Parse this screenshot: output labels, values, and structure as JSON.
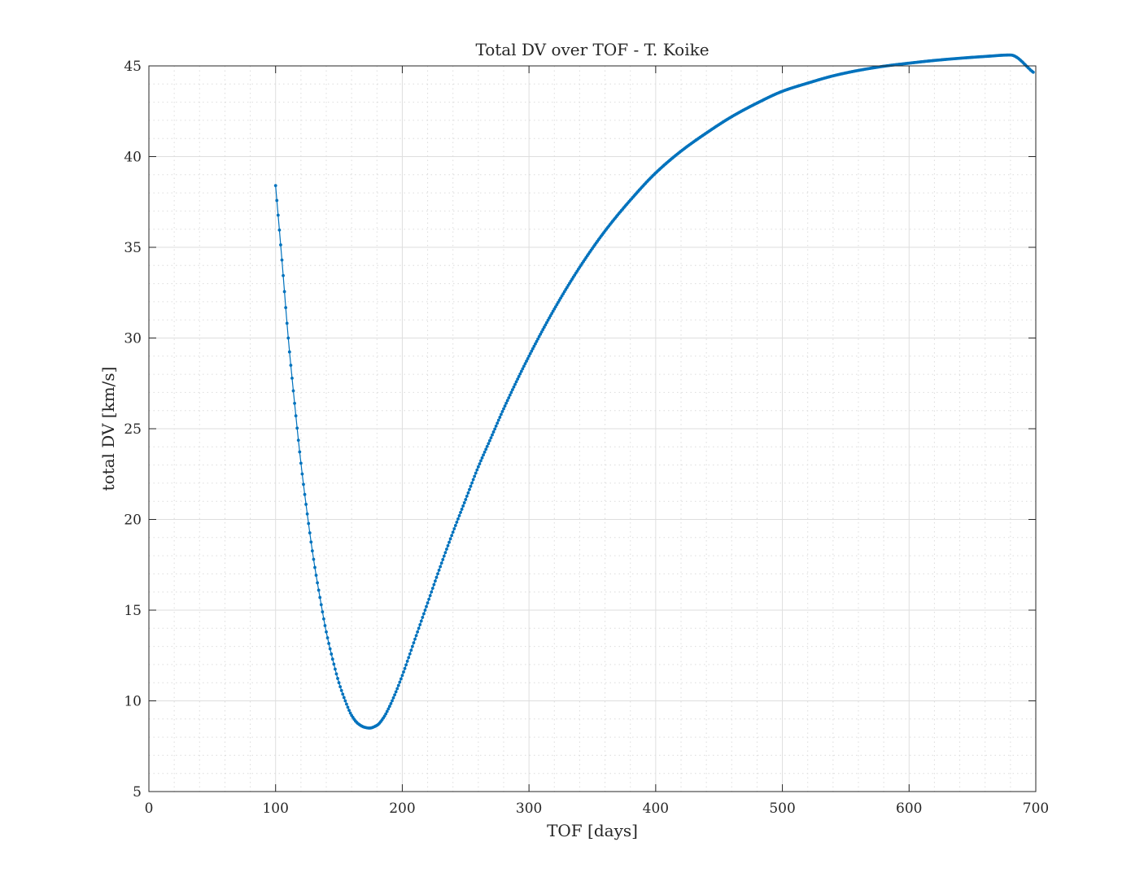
{
  "chart_data": {
    "type": "line",
    "title": "Total DV over TOF - T. Koike",
    "xlabel": "TOF [days]",
    "ylabel": "total DV [km/s]",
    "xlim": [
      0,
      700
    ],
    "ylim": [
      5,
      45
    ],
    "xticks": [
      "0",
      "100",
      "200",
      "300",
      "400",
      "500",
      "600",
      "700"
    ],
    "yticks": [
      "5",
      "10",
      "15",
      "20",
      "25",
      "30",
      "35",
      "40",
      "45"
    ],
    "x_minor_step": 20,
    "y_minor_step": 1,
    "grid": true,
    "minor_grid": true,
    "box": true,
    "series": [
      {
        "color": "#0072BD",
        "marker": "dot",
        "x_step": 1,
        "x": [
          100,
          105,
          110,
          115,
          120,
          125,
          130,
          135,
          140,
          145,
          150,
          155,
          160,
          165,
          170,
          174,
          180,
          185,
          190,
          195,
          200,
          210,
          220,
          230,
          240,
          250,
          260,
          270,
          280,
          300,
          320,
          340,
          360,
          380,
          400,
          420,
          440,
          460,
          480,
          500,
          520,
          540,
          560,
          580,
          600,
          620,
          640,
          660,
          680,
          698
        ],
        "y": [
          38.4,
          34.3,
          30.0,
          26.4,
          23.1,
          20.3,
          17.8,
          15.7,
          13.8,
          12.3,
          11.0,
          10.0,
          9.2,
          8.75,
          8.55,
          8.5,
          8.65,
          9.05,
          9.7,
          10.5,
          11.4,
          13.4,
          15.4,
          17.4,
          19.3,
          21.1,
          22.9,
          24.5,
          26.1,
          29.0,
          31.6,
          33.9,
          35.9,
          37.6,
          39.1,
          40.3,
          41.3,
          42.2,
          42.95,
          43.6,
          44.05,
          44.45,
          44.75,
          44.98,
          45.15,
          45.3,
          45.42,
          45.52,
          45.6,
          44.65
        ]
      }
    ]
  }
}
